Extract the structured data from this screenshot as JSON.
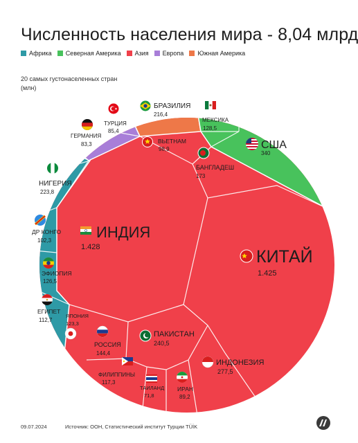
{
  "title": "Численность населения мира - 8,04 млрд",
  "legend": [
    {
      "label": "Африка",
      "color": "#2e9aa6"
    },
    {
      "label": "Северная Америка",
      "color": "#48c25c"
    },
    {
      "label": "Азия",
      "color": "#f0404a"
    },
    {
      "label": "Европа",
      "color": "#a87ed8"
    },
    {
      "label": "Южная Америка",
      "color": "#ee7848"
    }
  ],
  "subtitle": "20 самых густонаселенных стран (млн)",
  "footer": {
    "date": "09.07.2024",
    "source": "Источник: ООН, Статистический институт Турции TÜİK"
  },
  "chart_data": {
    "type": "voronoi treemap",
    "unit": "млн",
    "series": [
      {
        "name": "КИТАЙ",
        "value": "1.425",
        "region": "Азия",
        "flag": "china-flag"
      },
      {
        "name": "ИНДИЯ",
        "value": "1.428",
        "region": "Азия",
        "flag": "india-flag"
      },
      {
        "name": "США",
        "value": "340",
        "region": "Северная Америка",
        "flag": "usa-flag"
      },
      {
        "name": "ИНДОНЕЗИЯ",
        "value": "277,5",
        "region": "Азия",
        "flag": "indonesia-flag"
      },
      {
        "name": "ПАКИСТАН",
        "value": "240,5",
        "region": "Азия",
        "flag": "pakistan-flag"
      },
      {
        "name": "НИГЕРИЯ",
        "value": "223,8",
        "region": "Африка",
        "flag": "nigeria-flag"
      },
      {
        "name": "БРАЗИЛИЯ",
        "value": "216,4",
        "region": "Южная Америка",
        "flag": "brazil-flag"
      },
      {
        "name": "БАНГЛАДЕШ",
        "value": "173",
        "region": "Азия",
        "flag": "bangladesh-flag"
      },
      {
        "name": "РОССИЯ",
        "value": "144,4",
        "region": "Азия",
        "flag": "russia-flag"
      },
      {
        "name": "МЕКСИКА",
        "value": "128,5",
        "region": "Северная Америка",
        "flag": "mexico-flag"
      },
      {
        "name": "ЭФИОПИЯ",
        "value": "126,5",
        "region": "Африка",
        "flag": "ethiopia-flag"
      },
      {
        "name": "ЯПОНИЯ",
        "value": "123,3",
        "region": "Азия",
        "flag": "japan-flag"
      },
      {
        "name": "ФИЛИППИНЫ",
        "value": "117,3",
        "region": "Азия",
        "flag": "philippines-flag"
      },
      {
        "name": "ЕГИПЕТ",
        "value": "112,7",
        "region": "Африка",
        "flag": "egypt-flag"
      },
      {
        "name": "ДР КОНГО",
        "value": "102,3",
        "region": "Африка",
        "flag": "drc-flag"
      },
      {
        "name": "ВЬЕТНАМ",
        "value": "98,9",
        "region": "Азия",
        "flag": "vietnam-flag"
      },
      {
        "name": "ИРАН",
        "value": "89,2",
        "region": "Азия",
        "flag": "iran-flag"
      },
      {
        "name": "ТУРЦИЯ",
        "value": "85,4",
        "region": "Европа",
        "flag": "turkey-flag"
      },
      {
        "name": "ГЕРМАНИЯ",
        "value": "83,3",
        "region": "Европа",
        "flag": "germany-flag"
      },
      {
        "name": "ТАИЛАНД",
        "value": "71,8",
        "region": "Азия",
        "flag": "thailand-flag"
      }
    ]
  }
}
